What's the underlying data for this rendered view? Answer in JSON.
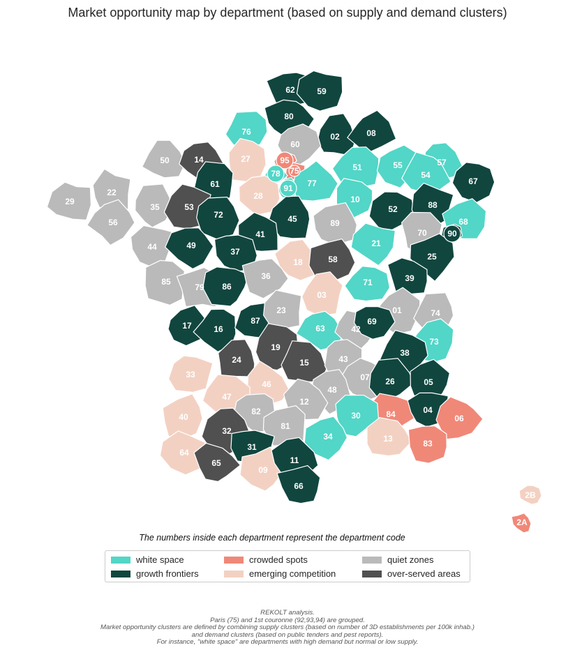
{
  "title": "Market opportunity map by department (based on supply and demand clusters)",
  "note": "The numbers inside each department represent the department code",
  "colors": {
    "white_space": "#52d6c7",
    "growth_frontiers": "#11463f",
    "crowded_spots": "#f08878",
    "emerging_competition": "#f3d1c2",
    "quiet_zones": "#bababa",
    "over_served_areas": "#505050"
  },
  "legend": [
    {
      "key": "white_space",
      "label": "white space"
    },
    {
      "key": "growth_frontiers",
      "label": "growth frontiers"
    },
    {
      "key": "crowded_spots",
      "label": "crowded spots"
    },
    {
      "key": "emerging_competition",
      "label": "emerging competition"
    },
    {
      "key": "quiet_zones",
      "label": "quiet zones"
    },
    {
      "key": "over_served_areas",
      "label": "over-served areas"
    }
  ],
  "departments": [
    {
      "code": "62",
      "cluster": "growth_frontiers"
    },
    {
      "code": "59",
      "cluster": "growth_frontiers"
    },
    {
      "code": "80",
      "cluster": "growth_frontiers"
    },
    {
      "code": "02",
      "cluster": "growth_frontiers"
    },
    {
      "code": "08",
      "cluster": "growth_frontiers"
    },
    {
      "code": "76",
      "cluster": "white_space"
    },
    {
      "code": "60",
      "cluster": "quiet_zones"
    },
    {
      "code": "50",
      "cluster": "quiet_zones"
    },
    {
      "code": "14",
      "cluster": "over_served_areas"
    },
    {
      "code": "27",
      "cluster": "emerging_competition"
    },
    {
      "code": "95",
      "cluster": "crowded_spots"
    },
    {
      "code": "75",
      "cluster": "crowded_spots"
    },
    {
      "code": "78",
      "cluster": "white_space"
    },
    {
      "code": "91",
      "cluster": "white_space"
    },
    {
      "code": "77",
      "cluster": "white_space"
    },
    {
      "code": "51",
      "cluster": "white_space"
    },
    {
      "code": "55",
      "cluster": "white_space"
    },
    {
      "code": "57",
      "cluster": "white_space"
    },
    {
      "code": "54",
      "cluster": "white_space"
    },
    {
      "code": "67",
      "cluster": "growth_frontiers"
    },
    {
      "code": "22",
      "cluster": "quiet_zones"
    },
    {
      "code": "29",
      "cluster": "quiet_zones"
    },
    {
      "code": "35",
      "cluster": "quiet_zones"
    },
    {
      "code": "56",
      "cluster": "quiet_zones"
    },
    {
      "code": "61",
      "cluster": "growth_frontiers"
    },
    {
      "code": "28",
      "cluster": "emerging_competition"
    },
    {
      "code": "53",
      "cluster": "over_served_areas"
    },
    {
      "code": "72",
      "cluster": "growth_frontiers"
    },
    {
      "code": "10",
      "cluster": "white_space"
    },
    {
      "code": "52",
      "cluster": "growth_frontiers"
    },
    {
      "code": "88",
      "cluster": "growth_frontiers"
    },
    {
      "code": "68",
      "cluster": "white_space"
    },
    {
      "code": "45",
      "cluster": "growth_frontiers"
    },
    {
      "code": "89",
      "cluster": "quiet_zones"
    },
    {
      "code": "70",
      "cluster": "quiet_zones"
    },
    {
      "code": "90",
      "cluster": "growth_frontiers"
    },
    {
      "code": "44",
      "cluster": "quiet_zones"
    },
    {
      "code": "49",
      "cluster": "growth_frontiers"
    },
    {
      "code": "41",
      "cluster": "growth_frontiers"
    },
    {
      "code": "37",
      "cluster": "growth_frontiers"
    },
    {
      "code": "21",
      "cluster": "white_space"
    },
    {
      "code": "25",
      "cluster": "growth_frontiers"
    },
    {
      "code": "18",
      "cluster": "emerging_competition"
    },
    {
      "code": "58",
      "cluster": "over_served_areas"
    },
    {
      "code": "85",
      "cluster": "quiet_zones"
    },
    {
      "code": "79",
      "cluster": "quiet_zones"
    },
    {
      "code": "86",
      "cluster": "growth_frontiers"
    },
    {
      "code": "36",
      "cluster": "quiet_zones"
    },
    {
      "code": "39",
      "cluster": "growth_frontiers"
    },
    {
      "code": "71",
      "cluster": "white_space"
    },
    {
      "code": "03",
      "cluster": "emerging_competition"
    },
    {
      "code": "01",
      "cluster": "quiet_zones"
    },
    {
      "code": "74",
      "cluster": "quiet_zones"
    },
    {
      "code": "17",
      "cluster": "growth_frontiers"
    },
    {
      "code": "16",
      "cluster": "growth_frontiers"
    },
    {
      "code": "87",
      "cluster": "growth_frontiers"
    },
    {
      "code": "23",
      "cluster": "quiet_zones"
    },
    {
      "code": "63",
      "cluster": "white_space"
    },
    {
      "code": "42",
      "cluster": "quiet_zones"
    },
    {
      "code": "69",
      "cluster": "growth_frontiers"
    },
    {
      "code": "73",
      "cluster": "white_space"
    },
    {
      "code": "19",
      "cluster": "over_served_areas"
    },
    {
      "code": "24",
      "cluster": "over_served_areas"
    },
    {
      "code": "15",
      "cluster": "over_served_areas"
    },
    {
      "code": "43",
      "cluster": "quiet_zones"
    },
    {
      "code": "38",
      "cluster": "growth_frontiers"
    },
    {
      "code": "33",
      "cluster": "emerging_competition"
    },
    {
      "code": "46",
      "cluster": "emerging_competition"
    },
    {
      "code": "07",
      "cluster": "quiet_zones"
    },
    {
      "code": "26",
      "cluster": "growth_frontiers"
    },
    {
      "code": "05",
      "cluster": "growth_frontiers"
    },
    {
      "code": "47",
      "cluster": "emerging_competition"
    },
    {
      "code": "48",
      "cluster": "quiet_zones"
    },
    {
      "code": "12",
      "cluster": "quiet_zones"
    },
    {
      "code": "82",
      "cluster": "quiet_zones"
    },
    {
      "code": "84",
      "cluster": "crowded_spots"
    },
    {
      "code": "04",
      "cluster": "growth_frontiers"
    },
    {
      "code": "06",
      "cluster": "crowded_spots"
    },
    {
      "code": "40",
      "cluster": "emerging_competition"
    },
    {
      "code": "32",
      "cluster": "over_served_areas"
    },
    {
      "code": "81",
      "cluster": "quiet_zones"
    },
    {
      "code": "30",
      "cluster": "white_space"
    },
    {
      "code": "34",
      "cluster": "white_space"
    },
    {
      "code": "13",
      "cluster": "emerging_competition"
    },
    {
      "code": "83",
      "cluster": "crowded_spots"
    },
    {
      "code": "64",
      "cluster": "emerging_competition"
    },
    {
      "code": "31",
      "cluster": "growth_frontiers"
    },
    {
      "code": "65",
      "cluster": "over_served_areas"
    },
    {
      "code": "09",
      "cluster": "emerging_competition"
    },
    {
      "code": "11",
      "cluster": "growth_frontiers"
    },
    {
      "code": "66",
      "cluster": "growth_frontiers"
    },
    {
      "code": "2B",
      "cluster": "emerging_competition"
    },
    {
      "code": "2A",
      "cluster": "crowded_spots"
    }
  ],
  "footnote": [
    "REKOLT analysis.",
    "Paris (75) and 1st couronne (92,93,94) are grouped.",
    "Market opportunity clusters are defined by combining supply clusters (based on number of 3D establishments per 100k inhab.)",
    "and demand clusters (based on public tenders and pest reports).",
    "For instance, \"white space\" are departments with high demand but normal or low supply."
  ]
}
